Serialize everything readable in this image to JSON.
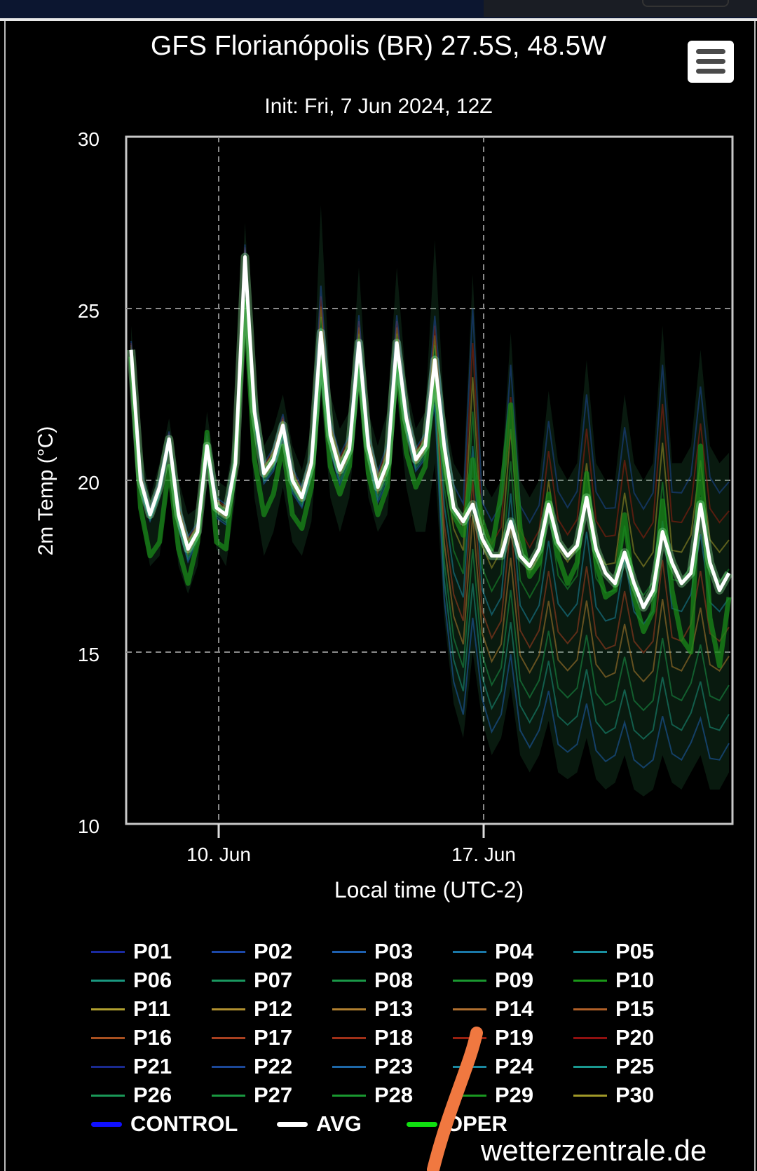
{
  "header": {
    "title": "GFS Florianópolis (BR) 27.5S, 48.5W",
    "subtitle": "Init: Fri, 7 Jun 2024, 12Z",
    "menu_icon": "hamburger-menu-icon"
  },
  "credit": "wetterzentrale.de",
  "colors": {
    "background": "#000000",
    "avg": "#ffffff",
    "oper": "#1fd41f",
    "control": "#1a1aff",
    "grid": "#8a8a8a",
    "axis_frame": "#c8c8c8",
    "annotation_scribble": "#f07840"
  },
  "chart_data": {
    "type": "line",
    "title": "GFS Florianópolis (BR) 27.5S, 48.5W",
    "subtitle": "Init: Fri, 7 Jun 2024, 12Z",
    "xlabel": "Local time (UTC-2)",
    "ylabel": "2m Temp (°C)",
    "ylim": [
      10,
      30
    ],
    "yticks": [
      "10",
      "15",
      "20",
      "25",
      "30"
    ],
    "xticks": [
      "10. Jun",
      "17. Jun"
    ],
    "x_start": "2024-06-07 10:00",
    "step_hours": 6,
    "grid": true,
    "avg_values": [
      23.8,
      20.0,
      19.0,
      19.8,
      21.2,
      19.0,
      18.0,
      18.5,
      21.0,
      19.2,
      19.0,
      20.5,
      26.5,
      22.0,
      20.2,
      20.6,
      21.6,
      20.0,
      19.5,
      20.5,
      24.3,
      21.3,
      20.3,
      20.9,
      24.0,
      21.0,
      19.8,
      20.5,
      24.0,
      21.8,
      20.6,
      21.0,
      23.5,
      21.0,
      19.2,
      18.8,
      19.3,
      18.3,
      17.8,
      17.8,
      18.8,
      17.8,
      17.5,
      18.0,
      19.3,
      18.2,
      17.8,
      18.1,
      19.5,
      18.0,
      17.3,
      17.0,
      17.9,
      17.0,
      16.3,
      16.8,
      18.5,
      17.6,
      17.0,
      17.3,
      19.3,
      17.6,
      16.8,
      17.3
    ],
    "oper_values": [
      23.6,
      19.2,
      17.8,
      18.2,
      20.4,
      18.0,
      17.0,
      18.2,
      21.4,
      18.2,
      18.0,
      20.6,
      25.2,
      20.6,
      19.0,
      19.6,
      21.0,
      19.0,
      18.6,
      19.8,
      23.6,
      20.4,
      19.6,
      20.4,
      23.4,
      20.2,
      19.0,
      19.8,
      23.4,
      20.8,
      19.8,
      20.4,
      23.0,
      20.4,
      19.0,
      18.4,
      20.6,
      18.8,
      18.0,
      19.6,
      22.2,
      18.6,
      17.2,
      17.6,
      19.6,
      17.8,
      17.0,
      17.6,
      20.2,
      17.6,
      16.6,
      16.8,
      19.0,
      16.6,
      15.6,
      16.2,
      19.4,
      16.8,
      15.4,
      15.0,
      21.0,
      16.0,
      14.6,
      16.6
    ],
    "spread_upper": [
      24.5,
      21.0,
      19.5,
      20.5,
      21.8,
      20.0,
      19.0,
      19.2,
      22.0,
      20.0,
      19.8,
      21.5,
      27.5,
      23.0,
      21.0,
      21.5,
      22.5,
      21.0,
      20.3,
      21.5,
      28.0,
      22.5,
      21.5,
      22.0,
      26.2,
      22.0,
      21.0,
      22.0,
      26.2,
      22.8,
      21.5,
      22.0,
      27.0,
      22.0,
      20.5,
      20.0,
      26.0,
      20.0,
      19.5,
      20.0,
      24.3,
      20.0,
      19.5,
      20.0,
      22.6,
      20.5,
      20.0,
      20.5,
      23.5,
      20.5,
      20.0,
      20.0,
      22.5,
      20.5,
      20.0,
      20.5,
      24.5,
      20.5,
      20.5,
      21.0,
      23.8,
      21.0,
      20.5,
      20.8
    ],
    "spread_lower": [
      23.0,
      19.0,
      17.5,
      17.8,
      20.0,
      17.5,
      16.7,
      17.5,
      20.2,
      18.0,
      17.5,
      19.5,
      24.5,
      19.5,
      17.8,
      18.5,
      19.8,
      18.2,
      17.8,
      18.8,
      22.5,
      19.5,
      18.5,
      19.5,
      22.5,
      19.5,
      18.5,
      19.0,
      22.5,
      19.8,
      18.5,
      18.5,
      20.5,
      16.0,
      13.5,
      12.5,
      15.0,
      13.0,
      12.0,
      12.5,
      14.0,
      12.0,
      11.5,
      12.0,
      13.0,
      11.5,
      11.3,
      11.5,
      12.5,
      11.3,
      11.0,
      11.2,
      12.0,
      11.0,
      10.8,
      11.0,
      12.0,
      11.2,
      11.0,
      11.5,
      12.0,
      11.0,
      11.0,
      11.5
    ],
    "legend": [
      "P01",
      "P02",
      "P03",
      "P04",
      "P05",
      "P06",
      "P07",
      "P08",
      "P09",
      "P10",
      "P11",
      "P12",
      "P13",
      "P14",
      "P15",
      "P16",
      "P17",
      "P18",
      "P19",
      "P20",
      "P21",
      "P22",
      "P23",
      "P24",
      "P25",
      "P26",
      "P27",
      "P28",
      "P29",
      "P30",
      "CONTROL",
      "AVG",
      "OPER"
    ],
    "legend_colors": [
      "#1a2aa0",
      "#1c48a8",
      "#1e60b0",
      "#1a78a8",
      "#1a90a0",
      "#1a9880",
      "#1a9860",
      "#1a9848",
      "#1a9830",
      "#1a9818",
      "#b0a030",
      "#b09030",
      "#b08030",
      "#b07030",
      "#b06028",
      "#a85020",
      "#a84020",
      "#a03018",
      "#982010",
      "#901010",
      "#1a2a90",
      "#1c4898",
      "#1e68a8",
      "#1a88a0",
      "#1a9890",
      "#1a9858",
      "#1a9840",
      "#1a9830",
      "#1a9820",
      "#a09828",
      "#1010ff",
      "#ffffff",
      "#10e010"
    ]
  }
}
